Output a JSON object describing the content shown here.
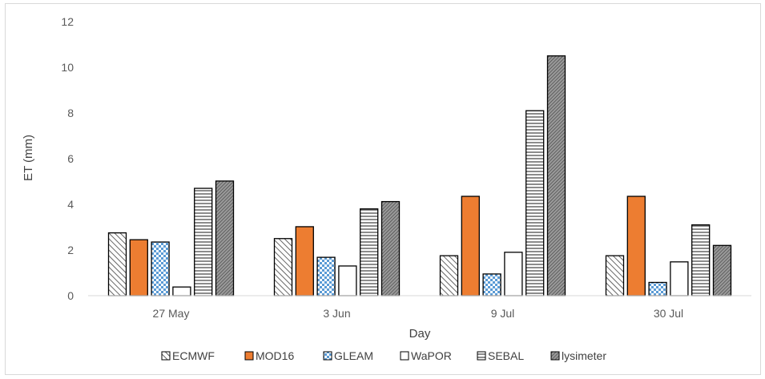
{
  "chart_data": {
    "type": "bar",
    "title": "",
    "xlabel": "Day",
    "ylabel": "ET (mm)",
    "ylim": [
      0,
      12
    ],
    "yticks": [
      0,
      2,
      4,
      6,
      8,
      10,
      12
    ],
    "grid": false,
    "legend_position": "bottom",
    "categories": [
      "27 May",
      "3 Jun",
      "9 Jul",
      "30 Jul"
    ],
    "series": [
      {
        "name": "ECMWF",
        "values": [
          2.75,
          2.5,
          1.75,
          1.75
        ],
        "fill": "#ffffff",
        "pattern": "diagonal"
      },
      {
        "name": "MOD16",
        "values": [
          2.45,
          3.02,
          4.35,
          4.35
        ],
        "fill": "#ed7d31",
        "pattern": "solid"
      },
      {
        "name": "GLEAM",
        "values": [
          2.35,
          1.68,
          0.95,
          0.58
        ],
        "fill": "#5b9bd5",
        "pattern": "checker"
      },
      {
        "name": "WaPOR",
        "values": [
          0.38,
          1.3,
          1.9,
          1.48
        ],
        "fill": "#ffffff",
        "pattern": "solid"
      },
      {
        "name": "SEBAL",
        "values": [
          4.7,
          3.8,
          8.1,
          3.1
        ],
        "fill": "#ffffff",
        "pattern": "horizontal"
      },
      {
        "name": "lysimeter",
        "values": [
          5.02,
          4.12,
          10.5,
          2.2
        ],
        "fill": "#7f7f7f",
        "pattern": "dense"
      }
    ]
  }
}
